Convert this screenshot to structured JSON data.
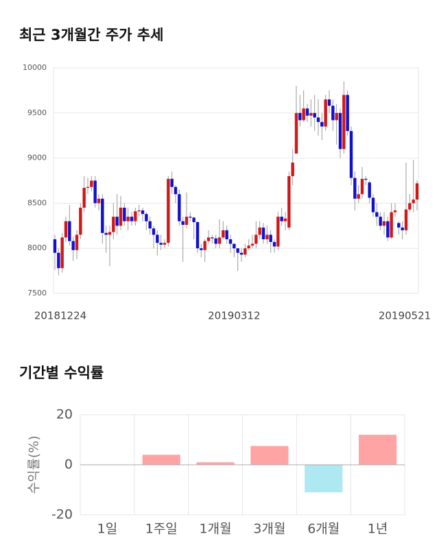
{
  "chart_data": [
    {
      "type": "candlestick",
      "title": "최근 3개월간 주가 추세",
      "categories": [
        "20181224",
        null,
        null,
        null,
        null,
        null,
        null,
        null,
        null,
        null,
        null,
        null,
        null,
        null,
        null,
        null,
        null,
        null,
        null,
        null,
        null,
        null,
        null,
        null,
        null,
        null,
        null,
        null,
        null,
        null,
        null,
        null,
        null,
        null,
        null,
        null,
        null,
        null,
        null,
        null,
        null,
        null,
        null,
        null,
        null,
        null,
        null,
        null,
        null,
        "20190312",
        null,
        null,
        null,
        null,
        null,
        null,
        null,
        null,
        null,
        null,
        null,
        null,
        null,
        null,
        null,
        null,
        null,
        null,
        null,
        null,
        null,
        null,
        null,
        null,
        null,
        null,
        null,
        null,
        null,
        null,
        null,
        null,
        null,
        null,
        null,
        null,
        null,
        null,
        null,
        null,
        null,
        null,
        null,
        null,
        null,
        null,
        null,
        null,
        null,
        "20190521"
      ],
      "open": [
        8100,
        7950,
        7780,
        8120,
        8300,
        8080,
        7980,
        8150,
        8450,
        8670,
        8680,
        8750,
        8500,
        8550,
        8170,
        8150,
        8180,
        8350,
        8250,
        8450,
        8300,
        8350,
        8300,
        8410,
        8420,
        8380,
        8300,
        8220,
        8150,
        8060,
        8040,
        8060,
        8770,
        8680,
        8600,
        8300,
        8260,
        8350,
        8340,
        8290,
        8000,
        7980,
        8080,
        8120,
        8110,
        8050,
        8120,
        8200,
        8100,
        8050,
        8000,
        7950,
        7930,
        8000,
        8030,
        8050,
        8150,
        8230,
        8100,
        8150,
        8070,
        8020,
        8350,
        8300,
        8230,
        8800,
        9050,
        9500,
        9420,
        9550,
        9470,
        9500,
        9450,
        9400,
        9350,
        9650,
        9580,
        9420,
        9500,
        9100,
        9700,
        9300,
        8780,
        8550,
        8600,
        8770,
        8730,
        8560,
        8400,
        8350,
        8250,
        8300,
        8120,
        8400,
        8280,
        8230,
        8200,
        8430,
        8500,
        8540
      ],
      "high": [
        8150,
        8000,
        8170,
        8350,
        8480,
        8130,
        8200,
        8500,
        8800,
        8780,
        8800,
        8800,
        8600,
        8600,
        8250,
        8250,
        8500,
        8600,
        8580,
        8500,
        8450,
        8400,
        8450,
        8480,
        8450,
        8400,
        8350,
        8250,
        8200,
        8150,
        8100,
        8800,
        8850,
        8700,
        8650,
        8350,
        8620,
        8400,
        8350,
        8300,
        8050,
        8100,
        8200,
        8150,
        8150,
        8320,
        8300,
        8250,
        8150,
        8050,
        8000,
        8000,
        8050,
        8100,
        8150,
        8300,
        8300,
        8280,
        8250,
        8200,
        8100,
        8400,
        8450,
        8400,
        8850,
        9100,
        9800,
        9700,
        9750,
        9600,
        9650,
        9700,
        9650,
        9500,
        9700,
        9750,
        9650,
        9600,
        9550,
        9850,
        9750,
        9350,
        8850,
        8700,
        8900,
        8800,
        8750,
        8600,
        8500,
        8400,
        8400,
        8350,
        8500,
        8500,
        8300,
        8300,
        8950,
        8600,
        8980,
        8750
      ],
      "low": [
        7760,
        7700,
        7730,
        8070,
        8030,
        7860,
        7880,
        8100,
        8400,
        8600,
        8630,
        8450,
        8420,
        8050,
        7950,
        7800,
        8100,
        8150,
        8200,
        8250,
        8200,
        8250,
        8250,
        8350,
        8300,
        8200,
        8150,
        8000,
        7920,
        7980,
        8000,
        8020,
        8600,
        8500,
        8250,
        7850,
        8220,
        8300,
        8100,
        7950,
        7900,
        7850,
        8050,
        8050,
        8000,
        8000,
        8100,
        8050,
        7950,
        7900,
        7750,
        7850,
        7900,
        7980,
        8000,
        8000,
        8100,
        8050,
        8050,
        7950,
        7950,
        7980,
        8250,
        8200,
        8200,
        8700,
        9050,
        9350,
        9400,
        9400,
        9350,
        9300,
        9250,
        9200,
        9300,
        9500,
        9300,
        9150,
        9000,
        9050,
        9250,
        8700,
        8420,
        8500,
        8550,
        8700,
        8500,
        8350,
        8250,
        8200,
        8150,
        8080,
        8100,
        8350,
        8150,
        8100,
        8150,
        8400,
        8400,
        8420
      ],
      "close": [
        7950,
        7780,
        8120,
        8300,
        8080,
        7980,
        8150,
        8450,
        8670,
        8680,
        8750,
        8500,
        8550,
        8170,
        8150,
        8180,
        8350,
        8250,
        8450,
        8300,
        8350,
        8300,
        8410,
        8420,
        8380,
        8300,
        8220,
        8150,
        8060,
        8040,
        8060,
        8770,
        8680,
        8600,
        8300,
        8260,
        8350,
        8340,
        8290,
        8000,
        7980,
        8080,
        8120,
        8110,
        8050,
        8120,
        8200,
        8100,
        8050,
        8000,
        7950,
        7930,
        8000,
        8030,
        8050,
        8150,
        8230,
        8100,
        8150,
        8070,
        8020,
        8350,
        8300,
        8330,
        8800,
        8950,
        9500,
        9420,
        9550,
        9470,
        9500,
        9450,
        9400,
        9350,
        9650,
        9580,
        9420,
        9500,
        9100,
        9700,
        9300,
        8780,
        8550,
        8600,
        8770,
        8760,
        8560,
        8400,
        8350,
        8250,
        8300,
        8120,
        8400,
        8420,
        8230,
        8200,
        8430,
        8500,
        8540,
        8720
      ],
      "up_color": "#d01818",
      "down_color": "#1010d0",
      "ylim": [
        7500,
        10000
      ],
      "yticks": [
        7500,
        8000,
        8500,
        9000,
        9500,
        10000
      ],
      "grid": true
    },
    {
      "type": "bar",
      "title": "기간별 수익률",
      "ylabel": "수익률(%)",
      "categories": [
        "1일",
        "1주일",
        "1개월",
        "3개월",
        "6개월",
        "1년"
      ],
      "values": [
        0,
        4,
        1,
        7.5,
        -11,
        12
      ],
      "up_color": "#ffa4a4",
      "down_color": "#aee8f0",
      "ylim": [
        -20,
        20
      ],
      "yticks": [
        -20,
        0,
        20
      ],
      "grid": true
    }
  ]
}
